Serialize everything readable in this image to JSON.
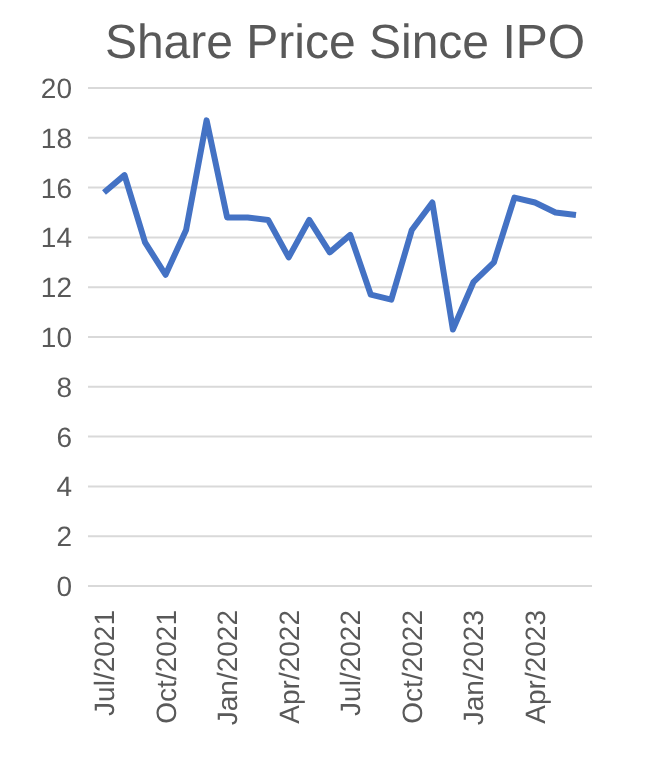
{
  "chart_data": {
    "type": "line",
    "title": "Share Price Since IPO",
    "categories": [
      "Jul/2021",
      null,
      null,
      "Oct/2021",
      null,
      null,
      "Jan/2022",
      null,
      null,
      "Apr/2022",
      null,
      null,
      "Jul/2022",
      null,
      null,
      "Oct/2022",
      null,
      null,
      "Jan/2023",
      null,
      null,
      "Apr/2023",
      null,
      null
    ],
    "series": [
      {
        "color": "#4472c4",
        "values": [
          15.8,
          16.5,
          13.8,
          12.5,
          14.3,
          18.7,
          14.8,
          14.8,
          14.7,
          13.2,
          14.7,
          13.4,
          14.1,
          11.7,
          11.5,
          14.3,
          15.4,
          10.3,
          12.2,
          13.0,
          15.6,
          15.4,
          15.0,
          14.9
        ]
      }
    ],
    "ylim": [
      0,
      20
    ],
    "yticks": [
      0,
      2,
      4,
      6,
      8,
      10,
      12,
      14,
      16,
      18,
      20
    ],
    "grid": "y",
    "legend": false,
    "marker": "none",
    "line_style": "solid"
  }
}
